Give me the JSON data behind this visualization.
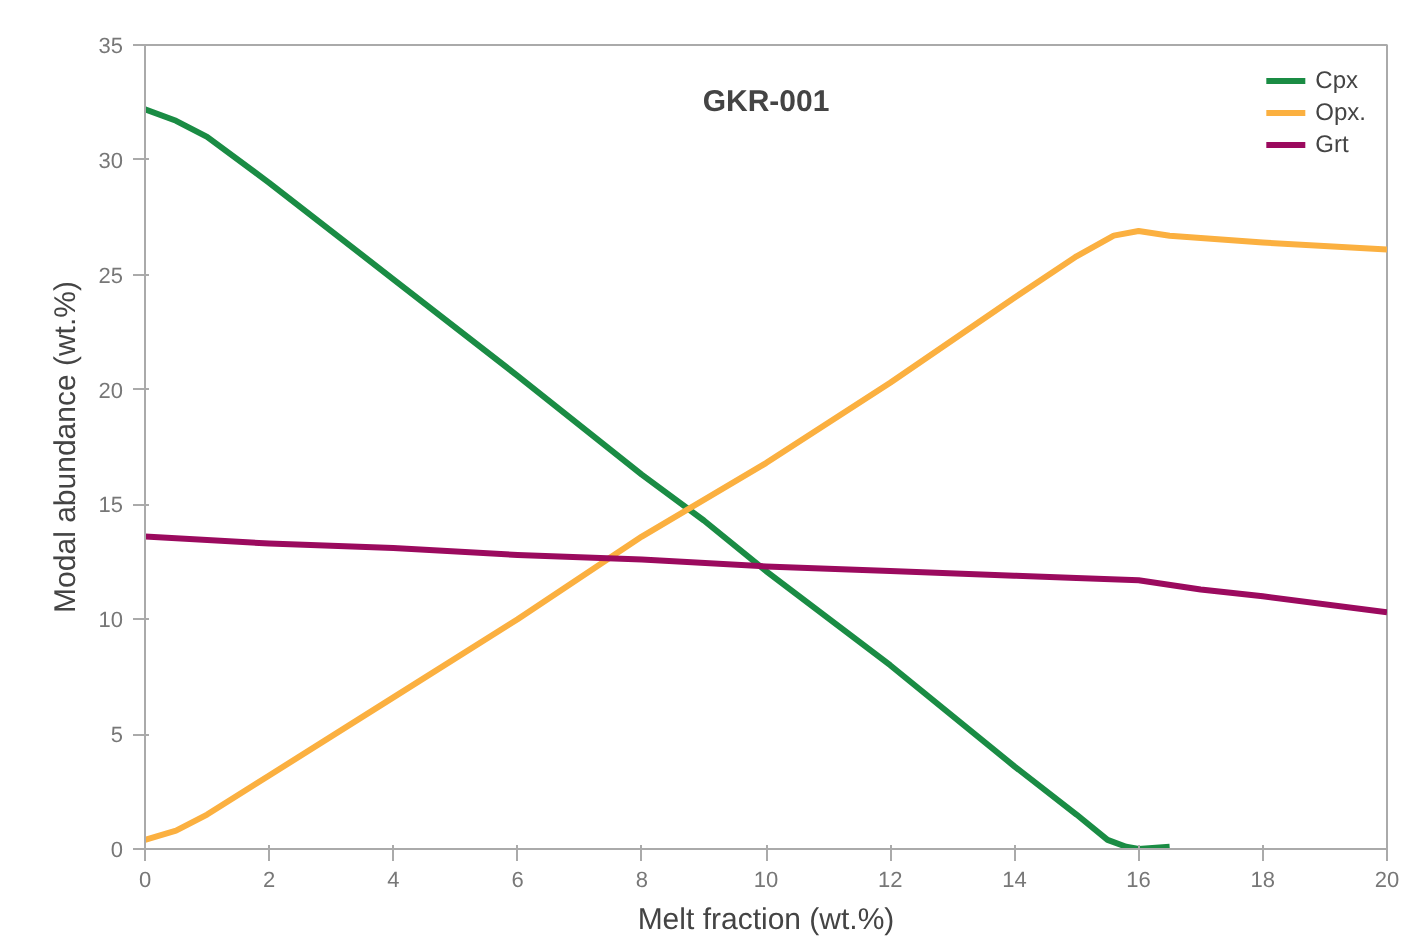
{
  "chart_data": {
    "type": "line",
    "title": "GKR-001",
    "xlabel": "Melt fraction (wt.%)",
    "ylabel": "Modal abundance (wt.%)",
    "xlim": [
      0,
      20
    ],
    "ylim": [
      0,
      35
    ],
    "xticks": [
      0,
      2,
      4,
      6,
      8,
      10,
      12,
      14,
      16,
      18,
      20
    ],
    "yticks": [
      0,
      5,
      10,
      15,
      20,
      25,
      30,
      35
    ],
    "grid": false,
    "legend": "top right",
    "marker": "none",
    "line_style": "solid",
    "series": [
      {
        "name": "Cpx",
        "color": "#1a8c44",
        "x": [
          0,
          0.5,
          1,
          2,
          4,
          6,
          8,
          9,
          10,
          12,
          14,
          15,
          15.5,
          15.8,
          16,
          16.5
        ],
        "values": [
          32.2,
          31.7,
          31.0,
          29.0,
          24.8,
          20.6,
          16.3,
          14.3,
          12.1,
          8.0,
          3.6,
          1.5,
          0.4,
          0.1,
          0.0,
          0.1
        ]
      },
      {
        "name": "Opx.",
        "color": "#fbb040",
        "x": [
          0,
          0.5,
          1,
          2,
          4,
          6,
          8,
          10,
          12,
          14,
          15,
          15.6,
          16,
          16.5,
          18,
          20
        ],
        "values": [
          0.4,
          0.8,
          1.5,
          3.2,
          6.6,
          10.0,
          13.6,
          16.8,
          20.3,
          24.0,
          25.8,
          26.7,
          26.9,
          26.7,
          26.4,
          26.1
        ]
      },
      {
        "name": "Grt",
        "color": "#9b0a5e",
        "x": [
          0,
          2,
          4,
          6,
          8,
          10,
          12,
          14,
          15,
          16,
          17,
          18,
          20
        ],
        "values": [
          13.6,
          13.3,
          13.1,
          12.8,
          12.6,
          12.3,
          12.1,
          11.9,
          11.8,
          11.7,
          11.3,
          11.0,
          10.3
        ]
      }
    ]
  }
}
